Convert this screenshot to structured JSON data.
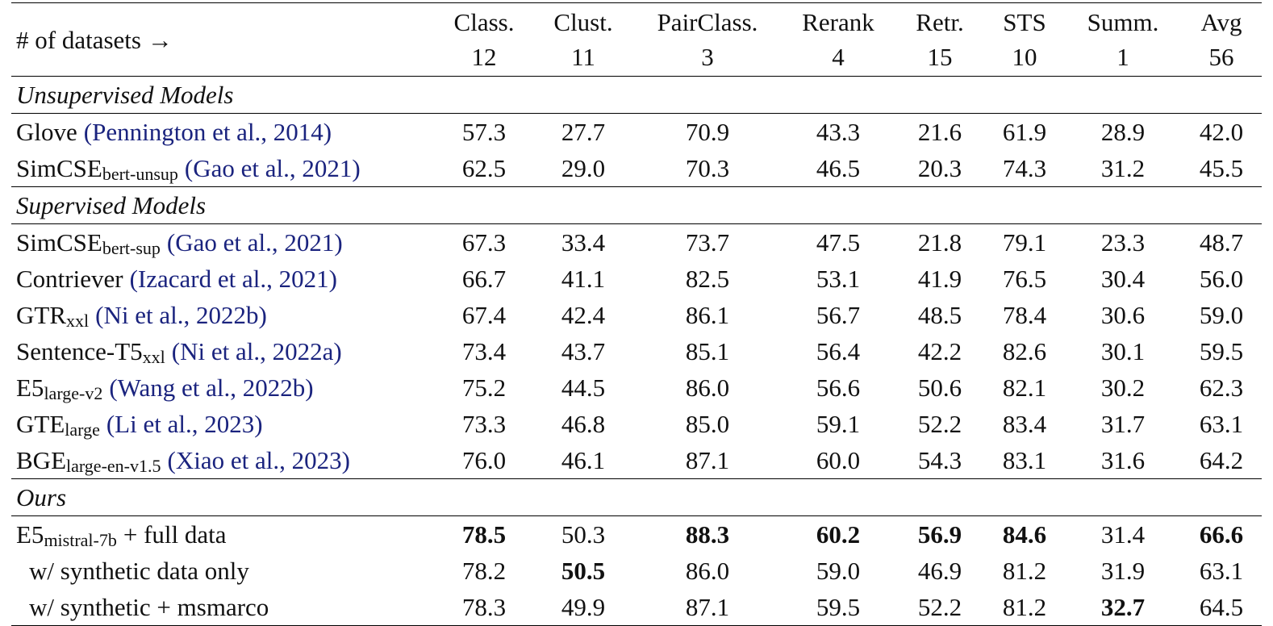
{
  "table": {
    "corner": "# of datasets →",
    "columns": [
      {
        "name": "Class.",
        "count": 12
      },
      {
        "name": "Clust.",
        "count": 11
      },
      {
        "name": "PairClass.",
        "count": 3
      },
      {
        "name": "Rerank",
        "count": 4
      },
      {
        "name": "Retr.",
        "count": 15
      },
      {
        "name": "STS",
        "count": 10
      },
      {
        "name": "Summ.",
        "count": 1
      },
      {
        "name": "Avg",
        "count": 56
      }
    ],
    "groups": [
      {
        "title": "Unsupervised Models",
        "rows": [
          {
            "name": {
              "base": "Glove",
              "cite": "(Pennington et al., 2014)"
            },
            "cells": [
              "57.3",
              "27.7",
              "70.9",
              "43.3",
              "21.6",
              "61.9",
              "28.9",
              "42.0"
            ]
          },
          {
            "name": {
              "base": "SimCSE",
              "sub": "bert-unsup",
              "cite": "(Gao et al., 2021)"
            },
            "cells": [
              "62.5",
              "29.0",
              "70.3",
              "46.5",
              "20.3",
              "74.3",
              "31.2",
              "45.5"
            ]
          }
        ]
      },
      {
        "title": "Supervised Models",
        "rows": [
          {
            "name": {
              "base": "SimCSE",
              "sub": "bert-sup",
              "cite": "(Gao et al., 2021)"
            },
            "cells": [
              "67.3",
              "33.4",
              "73.7",
              "47.5",
              "21.8",
              "79.1",
              "23.3",
              "48.7"
            ]
          },
          {
            "name": {
              "base": "Contriever",
              "cite": "(Izacard et al., 2021)"
            },
            "cells": [
              "66.7",
              "41.1",
              "82.5",
              "53.1",
              "41.9",
              "76.5",
              "30.4",
              "56.0"
            ]
          },
          {
            "name": {
              "base": "GTR",
              "sub": "xxl",
              "cite": "(Ni et al., 2022b)"
            },
            "cells": [
              "67.4",
              "42.4",
              "86.1",
              "56.7",
              "48.5",
              "78.4",
              "30.6",
              "59.0"
            ]
          },
          {
            "name": {
              "base": "Sentence-T5",
              "sub": "xxl",
              "cite": "(Ni et al., 2022a)"
            },
            "cells": [
              "73.4",
              "43.7",
              "85.1",
              "56.4",
              "42.2",
              "82.6",
              "30.1",
              "59.5"
            ]
          },
          {
            "name": {
              "base": "E5",
              "sub": "large-v2",
              "cite": "(Wang et al., 2022b)"
            },
            "cells": [
              "75.2",
              "44.5",
              "86.0",
              "56.6",
              "50.6",
              "82.1",
              "30.2",
              "62.3"
            ]
          },
          {
            "name": {
              "base": "GTE",
              "sub": "large",
              "cite": "(Li et al., 2023)"
            },
            "cells": [
              "73.3",
              "46.8",
              "85.0",
              "59.1",
              "52.2",
              "83.4",
              "31.7",
              "63.1"
            ]
          },
          {
            "name": {
              "base": "BGE",
              "sub": "large-en-v1.5",
              "cite": "(Xiao et al., 2023)"
            },
            "cells": [
              "76.0",
              "46.1",
              "87.1",
              "60.0",
              "54.3",
              "83.1",
              "31.6",
              "64.2"
            ]
          }
        ]
      },
      {
        "title": "Ours",
        "rows": [
          {
            "name": {
              "base": "E5",
              "sub": "mistral-7b",
              "suffix": "+ full data"
            },
            "cells": [
              "78.5",
              "50.3",
              "88.3",
              "60.2",
              "56.9",
              "84.6",
              "31.4",
              "66.6"
            ],
            "bold": [
              0,
              2,
              3,
              4,
              5,
              7
            ]
          },
          {
            "name": {
              "base": "w/ synthetic data only"
            },
            "indent": true,
            "cells": [
              "78.2",
              "50.5",
              "86.0",
              "59.0",
              "46.9",
              "81.2",
              "31.9",
              "63.1"
            ],
            "bold": [
              1
            ]
          },
          {
            "name": {
              "base": "w/ synthetic + msmarco"
            },
            "indent": true,
            "cells": [
              "78.3",
              "49.9",
              "87.1",
              "59.5",
              "52.2",
              "81.2",
              "32.7",
              "64.5"
            ],
            "bold": [
              6
            ]
          }
        ]
      }
    ]
  }
}
